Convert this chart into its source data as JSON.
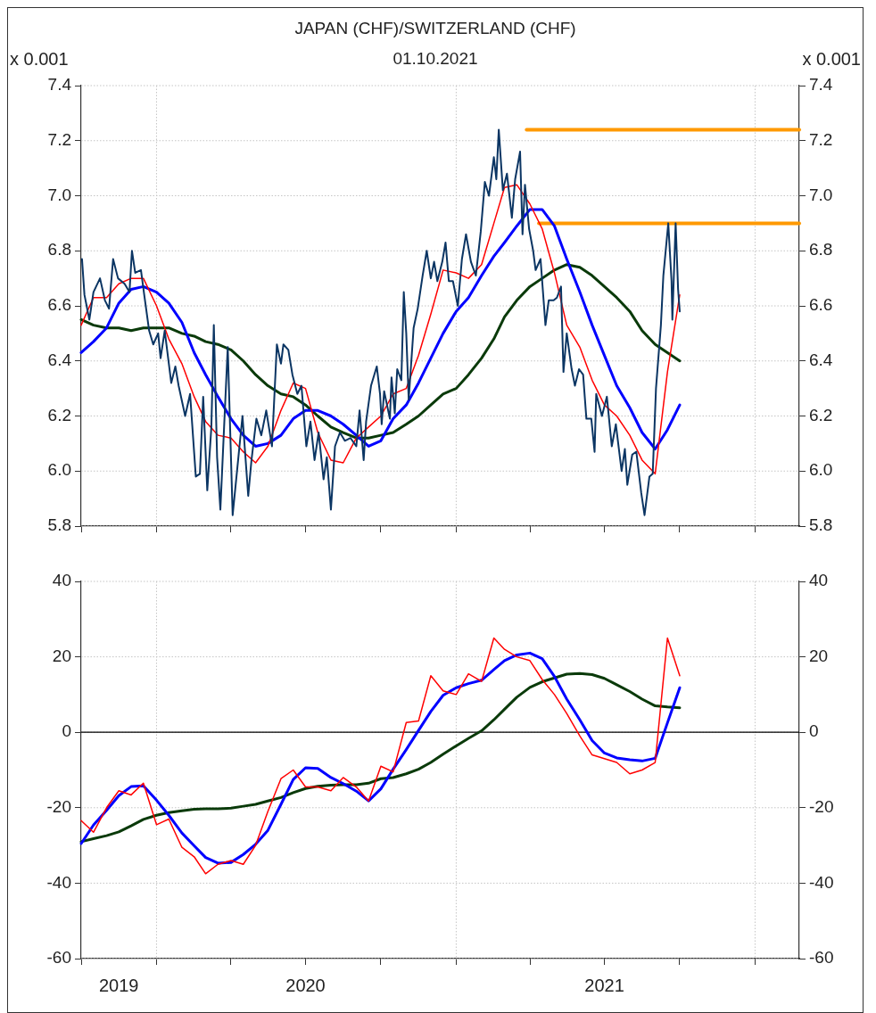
{
  "chart_data": [
    {
      "type": "line",
      "title": "JAPAN (CHF)/SWITZERLAND (CHF)",
      "subtitle": "01.10.2021",
      "ylabel": "x 0.001",
      "y2label": "x 0.001",
      "tick_labels": "y",
      "grid": true,
      "x": [
        "2019-10-01",
        "2019-10-16",
        "2019-11-01",
        "2019-11-16",
        "2019-12-01",
        "2019-12-16",
        "2020-01-01",
        "2020-01-16",
        "2020-02-01",
        "2020-02-16",
        "2020-03-01",
        "2020-03-16",
        "2020-04-01",
        "2020-04-16",
        "2020-05-01",
        "2020-05-16",
        "2020-06-01",
        "2020-06-16",
        "2020-07-01",
        "2020-07-16",
        "2020-08-01",
        "2020-08-16",
        "2020-09-01",
        "2020-09-16",
        "2020-10-01",
        "2020-10-16",
        "2020-11-01",
        "2020-11-16",
        "2020-12-01",
        "2020-12-16",
        "2021-01-01",
        "2021-01-16",
        "2021-02-01",
        "2021-02-16",
        "2021-03-01",
        "2021-03-16",
        "2021-04-01",
        "2021-04-16",
        "2021-05-01",
        "2021-05-16",
        "2021-06-01",
        "2021-06-16",
        "2021-07-01",
        "2021-07-16",
        "2021-08-01",
        "2021-08-16",
        "2021-09-01",
        "2021-09-16",
        "2021-10-01"
      ],
      "xlim": [
        "2019-10-01",
        "2022-02-24"
      ],
      "xticks": [
        {
          "value": "2019-10-01",
          "label": null
        },
        {
          "value": "2020-01-01",
          "label": null
        },
        {
          "value": "2020-04-01",
          "label": null
        },
        {
          "value": "2020-07-01",
          "label": null
        },
        {
          "value": "2020-10-01",
          "label": null
        },
        {
          "value": "2021-01-01",
          "label": null
        },
        {
          "value": "2021-04-01",
          "label": null
        },
        {
          "value": "2021-07-01",
          "label": null
        },
        {
          "value": "2021-10-01",
          "label": null
        },
        {
          "value": "2022-01-01",
          "label": null
        }
      ],
      "ylim": [
        5.8,
        7.4
      ],
      "yticks": [
        5.8,
        {
          "value": 6,
          "label": "6.0"
        },
        6.2,
        6.4,
        6.6,
        6.8,
        {
          "value": 7,
          "label": "7.0"
        },
        7.2,
        7.4
      ],
      "y2lim": [
        5.8,
        7.4
      ],
      "y2ticks": [
        5.8,
        {
          "value": 6,
          "label": "6.0"
        },
        6.2,
        6.4,
        6.6,
        6.8,
        {
          "value": 7,
          "label": "7.0"
        },
        7.2,
        7.4
      ],
      "series": [
        {
          "color": "#0b3563",
          "x": [
            "2019-10-02",
            "2019-10-05",
            "2019-10-11",
            "2019-10-16",
            "2019-10-24",
            "2019-10-30",
            "2019-11-04",
            "2019-11-09",
            "2019-11-15",
            "2019-11-23",
            "2019-11-29",
            "2019-12-02",
            "2019-12-06",
            "2019-12-13",
            "2019-12-17",
            "2019-12-23",
            "2019-12-28",
            "2020-01-03",
            "2020-01-06",
            "2020-01-11",
            "2020-01-19",
            "2020-01-24",
            "2020-01-28",
            "2020-02-05",
            "2020-02-11",
            "2020-02-18",
            "2020-02-23",
            "2020-02-27",
            "2020-03-03",
            "2020-03-08",
            "2020-03-11",
            "2020-03-15",
            "2020-03-19",
            "2020-03-24",
            "2020-03-28",
            "2020-04-03",
            "2020-04-10",
            "2020-04-15",
            "2020-04-22",
            "2020-04-26",
            "2020-05-02",
            "2020-05-08",
            "2020-05-14",
            "2020-05-21",
            "2020-05-27",
            "2020-06-01",
            "2020-06-04",
            "2020-06-10",
            "2020-06-15",
            "2020-06-21",
            "2020-06-26",
            "2020-07-02",
            "2020-07-07",
            "2020-07-12",
            "2020-07-17",
            "2020-07-23",
            "2020-07-27",
            "2020-08-01",
            "2020-08-06",
            "2020-08-12",
            "2020-08-18",
            "2020-08-25",
            "2020-09-01",
            "2020-09-05",
            "2020-09-10",
            "2020-09-13",
            "2020-09-19",
            "2020-09-26",
            "2020-09-30",
            "2020-10-02",
            "2020-10-05",
            "2020-10-12",
            "2020-10-14",
            "2020-10-18",
            "2020-10-21",
            "2020-10-26",
            "2020-10-29",
            "2020-11-01",
            "2020-11-04",
            "2020-11-10",
            "2020-11-15",
            "2020-11-21",
            "2020-11-26",
            "2020-12-01",
            "2020-12-05",
            "2020-12-09",
            "2020-12-15",
            "2020-12-19",
            "2020-12-23",
            "2020-12-28",
            "2021-01-03",
            "2021-01-08",
            "2021-01-13",
            "2021-01-19",
            "2021-01-25",
            "2021-01-31",
            "2021-02-05",
            "2021-02-10",
            "2021-02-16",
            "2021-02-19",
            "2021-02-22",
            "2021-02-27",
            "2021-03-04",
            "2021-03-10",
            "2021-03-14",
            "2021-03-20",
            "2021-03-23",
            "2021-03-26",
            "2021-03-31",
            "2021-04-05",
            "2021-04-08",
            "2021-04-14",
            "2021-04-20",
            "2021-04-24",
            "2021-04-30",
            "2021-05-04",
            "2021-05-09",
            "2021-05-12",
            "2021-05-16",
            "2021-05-22",
            "2021-05-26",
            "2021-05-31",
            "2021-06-05",
            "2021-06-09",
            "2021-06-15",
            "2021-06-19",
            "2021-06-21",
            "2021-06-28",
            "2021-07-04",
            "2021-07-10",
            "2021-07-15",
            "2021-07-22",
            "2021-07-26",
            "2021-07-29",
            "2021-08-04",
            "2021-08-09",
            "2021-08-15",
            "2021-08-19",
            "2021-08-25",
            "2021-08-29",
            "2021-09-02",
            "2021-09-08",
            "2021-09-11",
            "2021-09-17",
            "2021-09-21",
            "2021-09-22",
            "2021-09-26",
            "2021-09-29",
            "2021-10-01"
          ],
          "values": [
            6.77,
            6.64,
            6.55,
            6.65,
            6.7,
            6.62,
            6.59,
            6.77,
            6.7,
            6.68,
            6.65,
            6.8,
            6.72,
            6.73,
            6.64,
            6.51,
            6.46,
            6.5,
            6.41,
            6.51,
            6.32,
            6.38,
            6.31,
            6.2,
            6.28,
            5.98,
            5.99,
            6.27,
            5.93,
            6.16,
            6.53,
            6.05,
            5.86,
            6.19,
            6.45,
            5.84,
            6.05,
            6.2,
            5.91,
            6.04,
            6.19,
            6.13,
            6.22,
            6.09,
            6.46,
            6.39,
            6.46,
            6.44,
            6.35,
            6.28,
            6.31,
            6.09,
            6.18,
            6.04,
            6.14,
            5.97,
            6.05,
            5.86,
            6.09,
            6.14,
            6.11,
            6.12,
            6.09,
            6.22,
            6.04,
            6.18,
            6.31,
            6.38,
            6.28,
            6.17,
            6.29,
            6.19,
            6.34,
            6.21,
            6.37,
            6.33,
            6.65,
            6.5,
            6.26,
            6.52,
            6.59,
            6.71,
            6.8,
            6.7,
            6.76,
            6.69,
            6.76,
            6.83,
            6.69,
            6.69,
            6.6,
            6.77,
            6.86,
            6.76,
            6.71,
            6.87,
            7.05,
            7.0,
            7.14,
            7.06,
            7.24,
            7.02,
            7.08,
            6.92,
            7.06,
            7.16,
            6.86,
            7.04,
            6.88,
            6.8,
            6.73,
            6.77,
            6.53,
            6.62,
            6.62,
            6.63,
            6.67,
            6.36,
            6.5,
            6.37,
            6.31,
            6.37,
            6.35,
            6.19,
            6.19,
            6.07,
            6.28,
            6.2,
            6.27,
            6.09,
            6.17,
            6.0,
            6.08,
            5.95,
            6.06,
            6.07,
            5.92,
            5.84,
            5.98,
            5.99,
            6.3,
            6.53,
            6.71,
            6.9,
            6.69,
            6.55,
            6.9,
            6.66,
            6.58
          ]
        },
        {
          "color": "#ff0000",
          "values": [
            6.53,
            6.63,
            6.63,
            6.68,
            6.7,
            6.7,
            6.6,
            6.48,
            6.39,
            6.27,
            6.18,
            6.13,
            6.12,
            6.07,
            6.03,
            6.09,
            6.22,
            6.32,
            6.3,
            6.14,
            6.04,
            6.03,
            6.12,
            6.16,
            6.2,
            6.28,
            6.3,
            6.42,
            6.57,
            6.73,
            6.72,
            6.7,
            6.75,
            6.9,
            7.03,
            7.04,
            6.97,
            6.88,
            6.72,
            6.53,
            6.45,
            6.33,
            6.24,
            6.2,
            6.13,
            6.04,
            5.99,
            6.36,
            6.64
          ]
        },
        {
          "color": "#0000ff",
          "values": [
            6.43,
            6.47,
            6.52,
            6.61,
            6.66,
            6.67,
            6.65,
            6.61,
            6.54,
            6.43,
            6.35,
            6.27,
            6.19,
            6.13,
            6.09,
            6.1,
            6.13,
            6.19,
            6.22,
            6.22,
            6.2,
            6.17,
            6.13,
            6.09,
            6.11,
            6.19,
            6.24,
            6.32,
            6.41,
            6.5,
            6.58,
            6.63,
            6.71,
            6.78,
            6.83,
            6.89,
            6.95,
            6.95,
            6.89,
            6.77,
            6.65,
            6.53,
            6.42,
            6.31,
            6.23,
            6.14,
            6.08,
            6.15,
            6.24
          ]
        },
        {
          "color": "#0a3a0a",
          "values": [
            6.55,
            6.53,
            6.52,
            6.52,
            6.51,
            6.52,
            6.52,
            6.52,
            6.5,
            6.49,
            6.47,
            6.46,
            6.44,
            6.4,
            6.35,
            6.31,
            6.28,
            6.27,
            6.24,
            6.2,
            6.16,
            6.14,
            6.12,
            6.12,
            6.13,
            6.14,
            6.17,
            6.2,
            6.24,
            6.28,
            6.3,
            6.35,
            6.41,
            6.48,
            6.56,
            6.62,
            6.67,
            6.7,
            6.73,
            6.75,
            6.74,
            6.71,
            6.67,
            6.63,
            6.58,
            6.51,
            6.46,
            6.43,
            6.4
          ]
        },
        {
          "color": "#ff9900",
          "x": [
            "2021-03-28",
            "2022-02-24"
          ],
          "values": [
            7.24,
            7.24
          ]
        },
        {
          "color": "#ff9900",
          "x": [
            "2021-04-12",
            "2022-02-24"
          ],
          "values": [
            6.9,
            6.9
          ]
        }
      ]
    },
    {
      "type": "line",
      "grid": true,
      "x": [
        "2019-10-01",
        "2019-10-16",
        "2019-11-01",
        "2019-11-16",
        "2019-12-01",
        "2019-12-16",
        "2020-01-01",
        "2020-01-16",
        "2020-02-01",
        "2020-02-16",
        "2020-03-01",
        "2020-03-16",
        "2020-04-01",
        "2020-04-16",
        "2020-05-01",
        "2020-05-16",
        "2020-06-01",
        "2020-06-16",
        "2020-07-01",
        "2020-07-16",
        "2020-08-01",
        "2020-08-16",
        "2020-09-01",
        "2020-09-16",
        "2020-10-01",
        "2020-10-16",
        "2020-11-01",
        "2020-11-16",
        "2020-12-01",
        "2020-12-16",
        "2021-01-01",
        "2021-01-16",
        "2021-02-01",
        "2021-02-16",
        "2021-03-01",
        "2021-03-16",
        "2021-04-01",
        "2021-04-16",
        "2021-05-01",
        "2021-05-16",
        "2021-06-01",
        "2021-06-16",
        "2021-07-01",
        "2021-07-16",
        "2021-08-01",
        "2021-08-16",
        "2021-09-01",
        "2021-09-16",
        "2021-10-01"
      ],
      "xlim": [
        "2019-10-01",
        "2022-02-24"
      ],
      "xticks": [
        {
          "value": "2019-10-01",
          "label": null
        },
        {
          "value": "2019-11-16",
          "label": "2019"
        },
        {
          "value": "2020-01-01",
          "label": null
        },
        {
          "value": "2020-04-01",
          "label": null
        },
        {
          "value": "2020-07-01",
          "label": "2020"
        },
        {
          "value": "2020-10-01",
          "label": null
        },
        {
          "value": "2021-01-01",
          "label": null
        },
        {
          "value": "2021-04-01",
          "label": null
        },
        {
          "value": "2021-07-01",
          "label": "2021"
        },
        {
          "value": "2021-10-01",
          "label": null
        },
        {
          "value": "2022-01-01",
          "label": null
        }
      ],
      "ylim": [
        -60,
        40
      ],
      "yticks": [
        -60,
        -40,
        -20,
        0,
        20,
        40
      ],
      "y2lim": [
        -60,
        40
      ],
      "y2ticks": [
        -60,
        -40,
        -20,
        0,
        20,
        40
      ],
      "ref_lines": [
        {
          "axis": "y",
          "value": 0,
          "color": "#000000"
        }
      ],
      "series": [
        {
          "color": "#ff0000",
          "values": [
            -23.4,
            -26.5,
            -20,
            -15.5,
            -16.6,
            -13.5,
            -24.5,
            -23,
            -30.5,
            -33,
            -37.5,
            -35,
            -34,
            -35,
            -30,
            -21,
            -12.3,
            -10,
            -14.5,
            -14.5,
            -15.5,
            -12,
            -14.5,
            -18.2,
            -9,
            -10.5,
            2.6,
            3,
            15,
            11,
            10,
            15.5,
            13.5,
            25,
            22,
            20,
            19,
            14,
            10,
            5,
            -1,
            -6,
            -7,
            -8,
            -11,
            -10,
            -8,
            25,
            15
          ]
        },
        {
          "color": "#0000ff",
          "values": [
            -29.5,
            -24.6,
            -20.7,
            -16.8,
            -14.4,
            -14.2,
            -18,
            -22,
            -26.7,
            -30.1,
            -33.2,
            -34.7,
            -34.5,
            -32.4,
            -29.7,
            -26,
            -19.1,
            -12.5,
            -9.4,
            -9.6,
            -12,
            -13.6,
            -15.6,
            -18.2,
            -15,
            -9.8,
            -4.6,
            0.5,
            5.5,
            9.8,
            11.8,
            12.9,
            13.8,
            16.6,
            19,
            20.5,
            21,
            19.5,
            14.8,
            8.8,
            3.3,
            -2.2,
            -5.5,
            -6.8,
            -7.3,
            -7.6,
            -6.9,
            2.5,
            11.8
          ]
        },
        {
          "color": "#0a3a0a",
          "values": [
            -29,
            -28.2,
            -27.4,
            -26.4,
            -24.8,
            -23.1,
            -22,
            -21.3,
            -20.8,
            -20.4,
            -20.3,
            -20.3,
            -20.1,
            -19.6,
            -19.1,
            -18.2,
            -17.3,
            -16,
            -14.9,
            -14.3,
            -14,
            -13.9,
            -13.9,
            -13.5,
            -12.3,
            -12,
            -11,
            -9.8,
            -8,
            -5.8,
            -3.6,
            -1.6,
            0.4,
            3.3,
            6.1,
            9.3,
            11.9,
            13.4,
            14.4,
            15.4,
            15.6,
            15.3,
            14.3,
            12.6,
            10.8,
            8.8,
            7,
            6.7,
            6.5
          ]
        }
      ]
    }
  ]
}
